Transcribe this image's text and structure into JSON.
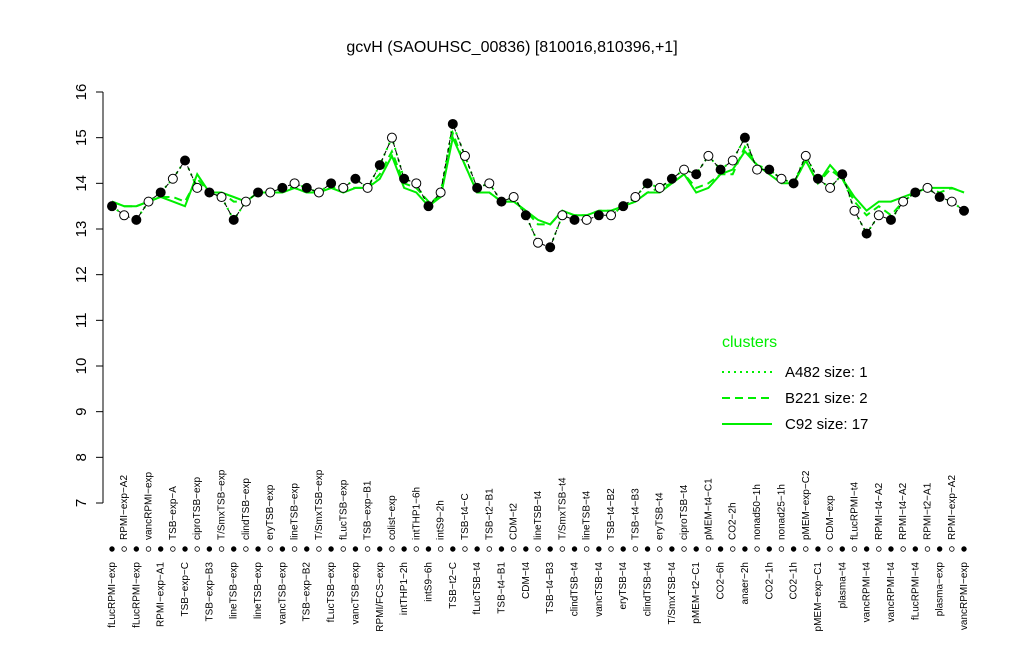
{
  "chart_data": {
    "type": "line",
    "title": "gcvH (SAOUHSC_00836) [810016,810396,+1]",
    "categories": [
      "fLucRPMI−exp",
      "RPMI−exp−A2",
      "fLucRPMI−exp",
      "vancRPMI−exp",
      "RPMI−exp−A1",
      "TSB−exp−A",
      "TSB−exp−C",
      "ciproTSB−exp",
      "TSB−exp−B3",
      "T/SmxTSB−exp",
      "lineTSB−exp",
      "clindTSB−exp",
      "lineTSB−exp",
      "eryTSB−exp",
      "vancTSB−exp",
      "lineTSB−exp",
      "TSB−exp−B2",
      "T/SmxTSB−exp",
      "fLucTSB−exp",
      "fLucTSB−exp",
      "vancTSB−exp",
      "TSB−exp−B1",
      "RPMI/FCS−exp",
      "colist−exp",
      "intTHP1−2h",
      "intTHP1−6h",
      "intS9−6h",
      "intS9−2h",
      "TSB−t2−C",
      "TSB−t4−C",
      "fLucTSB−t4",
      "TSB−t2−B1",
      "TSB−t4−B1",
      "CDM−t2",
      "CDM−t4",
      "lineTSB−t4",
      "TSB−t4−B3",
      "T/SmxTSB−t4",
      "clindTSB−t4",
      "lineTSB−t4",
      "vancTSB−t4",
      "TSB−t4−B2",
      "eryTSB−t4",
      "TSB−t4−B3",
      "clindTSB−t4",
      "eryTSB−t4",
      "T/SmxTSB−t4",
      "ciproTSB−t4",
      "pMEM−t2−C1",
      "pMEM−t4−C1",
      "CO2−6h",
      "CO2−2h",
      "anaer−2h",
      "nonad50−1h",
      "CO2−1h",
      "nonad25−1h",
      "CO2−1h",
      "pMEM−exp−C2",
      "pMEM−exp−C1",
      "CDM−exp",
      "plasma−t4",
      "fLucRPMI−t4",
      "vancRPMI−t4",
      "RPMI−t4−A2",
      "vancRPMI−t4",
      "RPMI−t4−A2",
      "fLucRPMI−t4",
      "RPMI−t2−A1",
      "plasma−exp",
      "RPMI−exp−A2",
      "vancRPMI−exp"
    ],
    "values": [
      13.5,
      13.3,
      13.2,
      13.6,
      13.8,
      14.1,
      14.5,
      13.9,
      13.8,
      13.7,
      13.2,
      13.6,
      13.8,
      13.8,
      13.9,
      14.0,
      13.9,
      13.8,
      14.0,
      13.9,
      14.1,
      13.9,
      14.4,
      15.0,
      14.1,
      14.0,
      13.5,
      13.8,
      15.3,
      14.6,
      13.9,
      14.0,
      13.6,
      13.7,
      13.3,
      12.7,
      12.6,
      13.3,
      13.2,
      13.2,
      13.3,
      13.3,
      13.5,
      13.7,
      14.0,
      13.9,
      14.1,
      14.3,
      14.2,
      14.6,
      14.3,
      14.5,
      15.0,
      14.3,
      14.3,
      14.1,
      14.0,
      14.6,
      14.1,
      13.9,
      14.2,
      13.4,
      12.9,
      13.3,
      13.2,
      13.6,
      13.8,
      13.9,
      13.7,
      13.6,
      13.4
    ],
    "series": [
      {
        "name": "A482 size: 1",
        "color": "#00ee00",
        "dash": "dotted",
        "values": [
          13.5,
          13.3,
          13.2,
          13.6,
          13.8,
          14.1,
          14.5,
          13.9,
          13.8,
          13.7,
          13.2,
          13.6,
          13.8,
          13.8,
          13.9,
          14.0,
          13.9,
          13.8,
          14.0,
          13.9,
          14.1,
          13.9,
          14.4,
          15.0,
          14.1,
          14.0,
          13.5,
          13.8,
          15.3,
          14.6,
          13.9,
          14.0,
          13.6,
          13.7,
          13.3,
          12.7,
          12.6,
          13.3,
          13.2,
          13.2,
          13.3,
          13.3,
          13.5,
          13.7,
          14.0,
          13.9,
          14.1,
          14.3,
          14.2,
          14.6,
          14.3,
          14.5,
          15.0,
          14.3,
          14.3,
          14.1,
          14.0,
          14.6,
          14.1,
          13.9,
          14.2,
          13.4,
          12.9,
          13.3,
          13.2,
          13.6,
          13.8,
          13.9,
          13.7,
          13.6,
          13.4
        ]
      },
      {
        "name": "B221 size: 2",
        "color": "#00ee00",
        "dash": "dashed",
        "values": [
          13.6,
          13.5,
          13.5,
          13.6,
          13.7,
          13.7,
          13.6,
          14.1,
          13.8,
          13.8,
          13.6,
          13.6,
          13.8,
          13.8,
          13.9,
          13.9,
          13.8,
          13.8,
          13.9,
          13.9,
          13.9,
          13.9,
          14.2,
          14.7,
          14.0,
          13.9,
          13.6,
          13.7,
          15.1,
          14.4,
          13.8,
          13.8,
          13.6,
          13.6,
          13.4,
          13.1,
          13.1,
          13.4,
          13.3,
          13.3,
          13.4,
          13.4,
          13.5,
          13.6,
          13.8,
          13.9,
          14.0,
          14.2,
          13.9,
          14.0,
          14.2,
          14.2,
          14.8,
          14.4,
          14.3,
          14.1,
          14.0,
          14.5,
          14.0,
          14.3,
          14.1,
          13.6,
          13.3,
          13.5,
          13.3,
          13.6,
          13.8,
          13.9,
          13.8,
          13.9,
          13.8
        ]
      },
      {
        "name": "C92 size: 17",
        "color": "#00ee00",
        "dash": "solid",
        "values": [
          13.6,
          13.5,
          13.5,
          13.6,
          13.7,
          13.6,
          13.5,
          14.2,
          13.8,
          13.8,
          13.7,
          13.6,
          13.8,
          13.8,
          13.8,
          13.9,
          13.8,
          13.8,
          13.9,
          13.8,
          13.9,
          13.9,
          14.1,
          14.6,
          13.9,
          13.8,
          13.5,
          13.7,
          15.0,
          14.4,
          13.8,
          13.8,
          13.6,
          13.6,
          13.4,
          13.2,
          13.1,
          13.4,
          13.3,
          13.3,
          13.4,
          13.4,
          13.5,
          13.6,
          13.8,
          13.8,
          14.0,
          14.2,
          13.8,
          13.9,
          14.2,
          14.3,
          14.7,
          14.4,
          14.2,
          14.0,
          14.0,
          14.5,
          14.0,
          14.4,
          14.1,
          13.7,
          13.4,
          13.6,
          13.6,
          13.7,
          13.8,
          13.9,
          13.9,
          13.9,
          13.8
        ]
      }
    ],
    "legend_title": "clusters",
    "legend": "right",
    "ylim": [
      7,
      16
    ],
    "yticks": [
      7,
      8,
      9,
      10,
      11,
      12,
      13,
      14,
      15,
      16
    ]
  }
}
